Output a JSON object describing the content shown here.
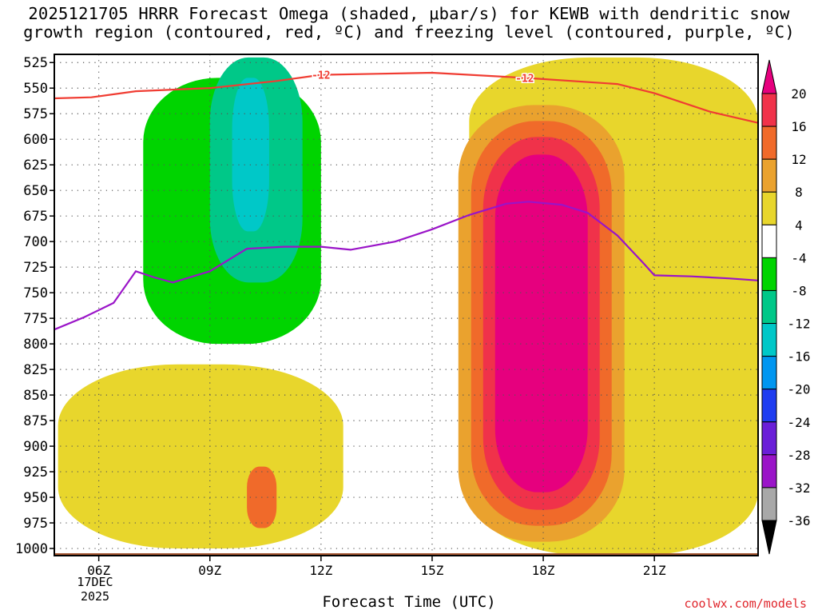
{
  "title": "2025121705 HRRR Forecast Omega (shaded, μbar/s) for KEWB with dendritic snow\ngrowth region (contoured, red, ºC) and freezing level (contoured, purple, ºC)",
  "credit": "coolwx.com/models",
  "chart_data": {
    "type": "time-height contour",
    "title": "2025121705 HRRR Forecast Omega (shaded, μbar/s) for KEWB with dendritic snow growth region (contoured, red, ºC) and freezing level (contoured, purple, ºC)",
    "xlabel": "Forecast Time (UTC)",
    "ylabel": "Pressure (hPa)",
    "x_range_hours_utc": [
      4.8,
      23.8
    ],
    "x_ticks": [
      {
        "hour": 6,
        "label": "06Z"
      },
      {
        "hour": 9,
        "label": "09Z"
      },
      {
        "hour": 12,
        "label": "12Z"
      },
      {
        "hour": 15,
        "label": "15Z"
      },
      {
        "hour": 18,
        "label": "18Z"
      },
      {
        "hour": 21,
        "label": "21Z"
      }
    ],
    "date_label": [
      "17DEC",
      "2025"
    ],
    "y_ticks": [
      525,
      550,
      575,
      600,
      625,
      650,
      675,
      700,
      725,
      750,
      775,
      800,
      825,
      850,
      875,
      900,
      925,
      950,
      975,
      1000
    ],
    "y_range_hpa": [
      517,
      1007
    ],
    "colorbar": {
      "levels": [
        20,
        16,
        12,
        8,
        4,
        -4,
        -8,
        -12,
        -16,
        -20,
        -24,
        -28,
        -32,
        -36
      ],
      "colors": [
        "#f0324a",
        "#f06a2a",
        "#eaa22e",
        "#e8d62c",
        "#ffffff",
        "#00d400",
        "#00c888",
        "#00c8c8",
        "#0096f0",
        "#1e3cf0",
        "#6a1ed8",
        "#9a14c8",
        "#a8a8a8"
      ],
      "top_arrow_color": "#e6007e",
      "bottom_arrow_color": "#000000"
    },
    "omega_regions": [
      {
        "band": "-8 to -4",
        "color": "#00d400",
        "hours": [
          7.2,
          12.0
        ],
        "pressure_hpa": [
          540,
          800
        ]
      },
      {
        "band": "-12 to -8",
        "color": "#00c888",
        "hours": [
          9.0,
          11.5
        ],
        "pressure_hpa": [
          520,
          740
        ]
      },
      {
        "band": "-16 to -12",
        "color": "#00c8c8",
        "hours": [
          9.6,
          10.6
        ],
        "pressure_hpa": [
          540,
          690
        ]
      },
      {
        "band": "4 to 8",
        "color": "#e8d62c",
        "hours": [
          16.0,
          23.8
        ],
        "pressure_hpa": [
          520,
          1007
        ]
      },
      {
        "band": "above 20",
        "color": "#e6007e",
        "hours": [
          16.7,
          19.2
        ],
        "pressure_hpa": [
          615,
          945
        ]
      },
      {
        "band": "4 to 8",
        "color": "#e8d62c",
        "hours": [
          4.9,
          12.6
        ],
        "pressure_hpa": [
          820,
          1000
        ]
      },
      {
        "band": "12 to 16",
        "color": "#f06a2a",
        "hours": [
          10.0,
          10.8
        ],
        "pressure_hpa": [
          920,
          980
        ]
      }
    ],
    "dendritic_contour": {
      "label": "-12",
      "color": "#f03c32",
      "points": [
        [
          4.8,
          560
        ],
        [
          5.8,
          559
        ],
        [
          7.0,
          553
        ],
        [
          9.0,
          550
        ],
        [
          10.8,
          543
        ],
        [
          12.0,
          537
        ],
        [
          13.5,
          536
        ],
        [
          15.0,
          535
        ],
        [
          17.5,
          540
        ],
        [
          20.0,
          546
        ],
        [
          21.0,
          555
        ],
        [
          22.5,
          573
        ],
        [
          23.8,
          584
        ]
      ]
    },
    "freezing_level_contour": {
      "color": "#9a14c8",
      "points": [
        [
          4.8,
          786
        ],
        [
          5.6,
          774
        ],
        [
          6.4,
          760
        ],
        [
          7.0,
          729
        ],
        [
          7.5,
          735
        ],
        [
          8.0,
          740
        ],
        [
          9.0,
          729
        ],
        [
          10.0,
          707
        ],
        [
          11.0,
          705
        ],
        [
          12.0,
          705
        ],
        [
          12.8,
          708
        ],
        [
          14.0,
          700
        ],
        [
          15.0,
          688
        ],
        [
          16.0,
          674
        ],
        [
          17.0,
          663
        ],
        [
          17.6,
          661
        ],
        [
          18.5,
          664
        ],
        [
          19.2,
          672
        ],
        [
          20.0,
          694
        ],
        [
          20.7,
          721
        ],
        [
          21.0,
          733
        ],
        [
          22.0,
          734
        ],
        [
          23.0,
          736
        ],
        [
          23.8,
          738
        ]
      ]
    }
  }
}
